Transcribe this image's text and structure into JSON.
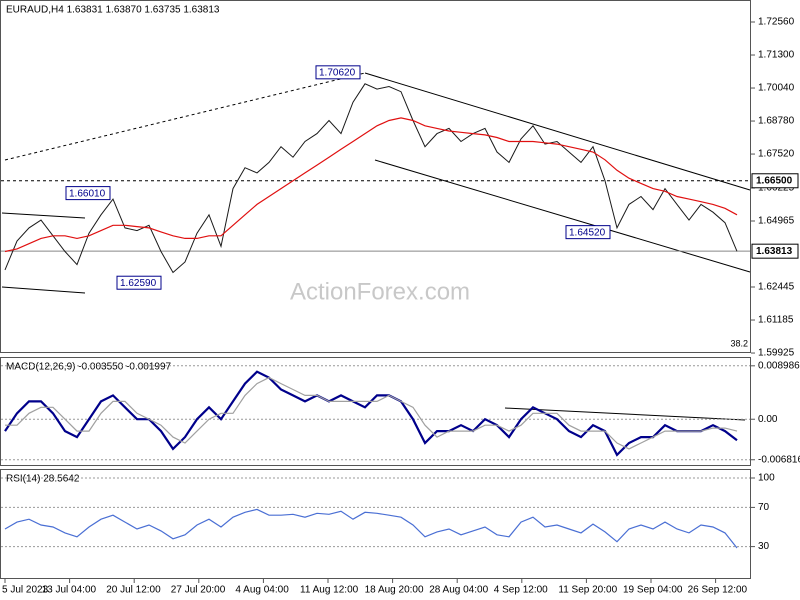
{
  "chart_data": [
    {
      "type": "line",
      "title": "EURAUD,H4  1.63831 1.63870 1.63735 1.63813",
      "watermark": "ActionForex.com",
      "corner_note": "38.2",
      "series": [
        {
          "color": "#1a1a1a",
          "values": [
            1.631,
            1.642,
            1.647,
            1.65,
            1.644,
            1.638,
            1.633,
            1.645,
            1.652,
            1.658,
            1.647,
            1.646,
            1.648,
            1.638,
            1.63,
            1.634,
            1.645,
            1.652,
            1.64,
            1.662,
            1.67,
            1.668,
            1.672,
            1.678,
            1.674,
            1.68,
            1.683,
            1.688,
            1.683,
            1.695,
            1.702,
            1.7,
            1.701,
            1.699,
            1.688,
            1.678,
            1.683,
            1.685,
            1.68,
            1.683,
            1.685,
            1.676,
            1.672,
            1.681,
            1.686,
            1.679,
            1.68,
            1.676,
            1.672,
            1.678,
            1.665,
            1.647,
            1.656,
            1.659,
            1.654,
            1.662,
            1.656,
            1.65,
            1.656,
            1.653,
            1.649,
            1.6381
          ]
        },
        {
          "color": "#e01010",
          "values": [
            1.638,
            1.639,
            1.641,
            1.643,
            1.644,
            1.644,
            1.643,
            1.644,
            1.646,
            1.648,
            1.648,
            1.6475,
            1.647,
            1.6455,
            1.644,
            1.643,
            1.643,
            1.644,
            1.644,
            1.648,
            1.652,
            1.656,
            1.659,
            1.662,
            1.665,
            1.668,
            1.671,
            1.674,
            1.677,
            1.68,
            1.683,
            1.686,
            1.688,
            1.689,
            1.688,
            1.686,
            1.685,
            1.684,
            1.6835,
            1.683,
            1.6825,
            1.6815,
            1.68,
            1.68,
            1.68,
            1.6795,
            1.679,
            1.678,
            1.677,
            1.676,
            1.673,
            1.669,
            1.666,
            1.664,
            1.662,
            1.661,
            1.659,
            1.658,
            1.657,
            1.656,
            1.6545,
            1.652
          ]
        }
      ],
      "ylim": [
        1.5985,
        1.734
      ],
      "yticks": [
        {
          "value": 1.7256,
          "label": "1.72560"
        },
        {
          "value": 1.713,
          "label": "1.71300"
        },
        {
          "value": 1.7004,
          "label": "1.70040"
        },
        {
          "value": 1.6878,
          "label": "1.68780"
        },
        {
          "value": 1.6752,
          "label": "1.67520"
        },
        {
          "value": 1.66225,
          "label": "1.66225"
        },
        {
          "value": 1.64965,
          "label": "1.64965"
        },
        {
          "value": 1.62445,
          "label": "1.62445"
        },
        {
          "value": 1.61185,
          "label": "1.61185"
        },
        {
          "value": 1.59925,
          "label": "1.59925"
        }
      ],
      "hlines": [
        {
          "value": 1.665,
          "label": "1.66500"
        },
        {
          "value": 1.63813,
          "label": "1.63813"
        }
      ],
      "annotations": [
        {
          "value": 1.7062,
          "label": "1.70620"
        },
        {
          "value": 1.6601,
          "label": "1.66010"
        },
        {
          "value": 1.6259,
          "label": "1.62590"
        },
        {
          "value": 1.6452,
          "label": "1.64520"
        }
      ]
    },
    {
      "type": "line",
      "title": "MACD(12,26,9) -0.003550 -0.001997",
      "series": [
        {
          "color": "#00008b",
          "values": [
            -0.002,
            0.001,
            0.003,
            0.003,
            0.001,
            -0.002,
            -0.003,
            0.0,
            0.003,
            0.004,
            0.002,
            0.0,
            0.0,
            -0.002,
            -0.005,
            -0.003,
            0.0,
            0.002,
            0.0,
            0.003,
            0.006,
            0.008,
            0.007,
            0.005,
            0.004,
            0.003,
            0.004,
            0.003,
            0.004,
            0.003,
            0.002,
            0.004,
            0.004,
            0.003,
            0.0,
            -0.004,
            -0.002,
            -0.002,
            -0.001,
            -0.002,
            0.0,
            -0.001,
            -0.003,
            0.0,
            0.002,
            0.001,
            0.0,
            -0.002,
            -0.003,
            -0.001,
            -0.002,
            -0.006,
            -0.004,
            -0.003,
            -0.003,
            -0.001,
            -0.002,
            -0.002,
            -0.002,
            -0.001,
            -0.002,
            -0.00355
          ]
        },
        {
          "color": "#a0a0a0",
          "values": [
            -0.001,
            -0.001,
            0.001,
            0.002,
            0.002,
            0.0,
            -0.002,
            -0.002,
            0.001,
            0.003,
            0.003,
            0.001,
            0.0,
            -0.001,
            -0.003,
            -0.004,
            -0.002,
            0.0,
            0.001,
            0.001,
            0.004,
            0.006,
            0.007,
            0.006,
            0.005,
            0.004,
            0.004,
            0.003,
            0.003,
            0.003,
            0.003,
            0.003,
            0.004,
            0.003,
            0.002,
            -0.001,
            -0.003,
            -0.002,
            -0.002,
            -0.002,
            -0.001,
            -0.001,
            -0.002,
            -0.001,
            0.001,
            0.001,
            0.001,
            -0.001,
            -0.002,
            -0.002,
            -0.002,
            -0.004,
            -0.005,
            -0.004,
            -0.003,
            -0.002,
            -0.002,
            -0.002,
            -0.002,
            -0.0015,
            -0.0015,
            -0.001997
          ]
        }
      ],
      "ylim": [
        -0.0077,
        0.0103
      ],
      "yticks": [
        0.008986,
        {
          "value": 0,
          "label": "0.00"
        },
        -0.006816
      ]
    },
    {
      "type": "line",
      "title": "RSI(14) 28.5642",
      "series": [
        {
          "color": "#4a6fd4",
          "values": [
            48,
            55,
            58,
            52,
            50,
            44,
            40,
            50,
            58,
            62,
            55,
            48,
            52,
            46,
            38,
            42,
            52,
            58,
            50,
            60,
            65,
            68,
            62,
            62,
            63,
            60,
            64,
            63,
            66,
            58,
            65,
            64,
            62,
            60,
            52,
            40,
            45,
            48,
            42,
            46,
            50,
            42,
            40,
            55,
            60,
            50,
            52,
            48,
            44,
            53,
            45,
            35,
            48,
            52,
            48,
            55,
            48,
            44,
            52,
            50,
            44,
            28.5642
          ]
        }
      ],
      "ylim": [
        0,
        100
      ],
      "yticks": [
        100,
        70,
        30
      ],
      "time_labels": [
        "5 Jul 2023",
        "13 Jul 04:00",
        "20 Jul 12:00",
        "27 Jul 20:00",
        "4 Aug 04:00",
        "11 Aug 12:00",
        "18 Aug 20:00",
        "28 Aug 04:00",
        "4 Sep 12:00",
        "11 Sep 20:00",
        "19 Sep 04:00",
        "26 Sep 12:00"
      ]
    }
  ]
}
